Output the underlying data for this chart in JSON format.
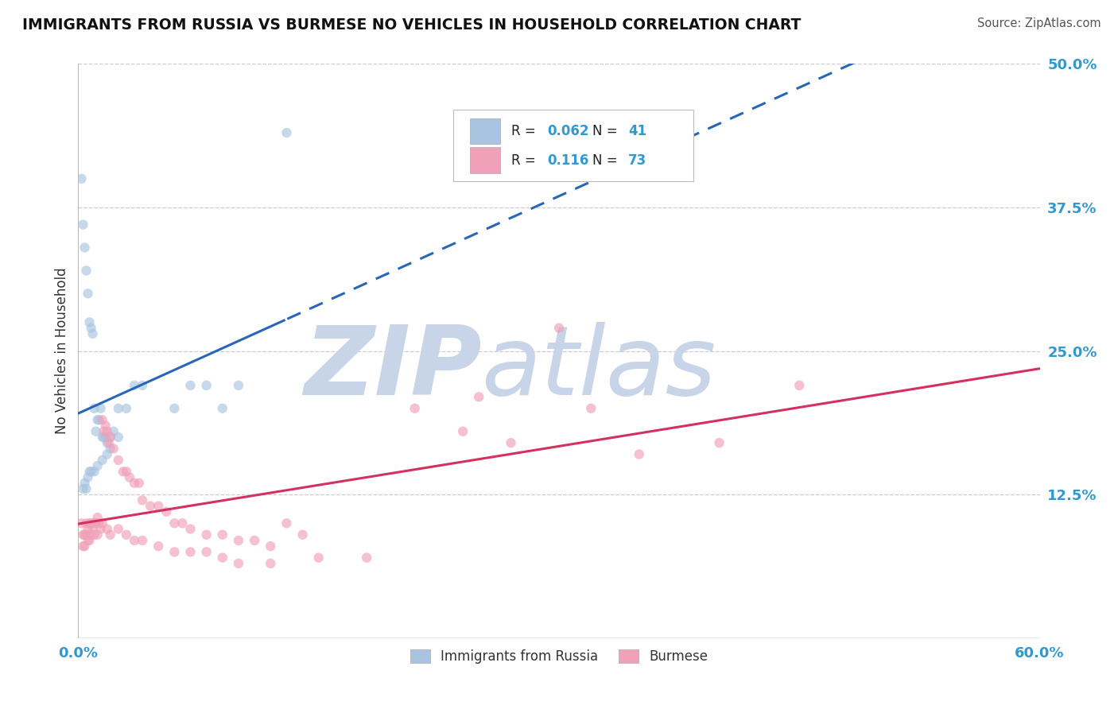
{
  "title": "IMMIGRANTS FROM RUSSIA VS BURMESE NO VEHICLES IN HOUSEHOLD CORRELATION CHART",
  "source": "Source: ZipAtlas.com",
  "ylabel": "No Vehicles in Household",
  "xlim": [
    0.0,
    0.6
  ],
  "ylim": [
    0.0,
    0.5
  ],
  "ytick_right": [
    0.125,
    0.25,
    0.375,
    0.5
  ],
  "ytick_right_labels": [
    "12.5%",
    "25.0%",
    "37.5%",
    "50.0%"
  ],
  "legend_r_russia": "0.062",
  "legend_n_russia": "41",
  "legend_r_burmese": "0.116",
  "legend_n_burmese": "73",
  "legend_labels": [
    "Immigrants from Russia",
    "Burmese"
  ],
  "series_russia": {
    "color_scatter": "#a8c4e0",
    "color_line": "#2966b8",
    "x": [
      0.002,
      0.003,
      0.004,
      0.005,
      0.006,
      0.007,
      0.008,
      0.009,
      0.01,
      0.011,
      0.012,
      0.013,
      0.014,
      0.015,
      0.016,
      0.017,
      0.018,
      0.02,
      0.022,
      0.025,
      0.003,
      0.004,
      0.005,
      0.006,
      0.007,
      0.008,
      0.01,
      0.012,
      0.015,
      0.018,
      0.02,
      0.025,
      0.03,
      0.035,
      0.04,
      0.06,
      0.07,
      0.08,
      0.09,
      0.1,
      0.13
    ],
    "y": [
      0.4,
      0.36,
      0.34,
      0.32,
      0.3,
      0.275,
      0.27,
      0.265,
      0.2,
      0.18,
      0.19,
      0.19,
      0.2,
      0.175,
      0.175,
      0.175,
      0.17,
      0.165,
      0.18,
      0.2,
      0.13,
      0.135,
      0.13,
      0.14,
      0.145,
      0.145,
      0.145,
      0.15,
      0.155,
      0.16,
      0.175,
      0.175,
      0.2,
      0.22,
      0.22,
      0.2,
      0.22,
      0.22,
      0.2,
      0.22,
      0.44
    ]
  },
  "series_burmese": {
    "color_scatter": "#f0a0b8",
    "color_line": "#d43060",
    "x": [
      0.002,
      0.003,
      0.004,
      0.005,
      0.006,
      0.007,
      0.008,
      0.009,
      0.01,
      0.011,
      0.012,
      0.013,
      0.014,
      0.015,
      0.016,
      0.017,
      0.018,
      0.019,
      0.02,
      0.022,
      0.025,
      0.028,
      0.03,
      0.032,
      0.035,
      0.038,
      0.04,
      0.045,
      0.05,
      0.055,
      0.06,
      0.065,
      0.07,
      0.08,
      0.09,
      0.1,
      0.11,
      0.12,
      0.13,
      0.14,
      0.003,
      0.004,
      0.005,
      0.006,
      0.007,
      0.008,
      0.01,
      0.012,
      0.015,
      0.018,
      0.02,
      0.025,
      0.03,
      0.035,
      0.04,
      0.05,
      0.06,
      0.07,
      0.08,
      0.09,
      0.1,
      0.12,
      0.15,
      0.18,
      0.21,
      0.24,
      0.27,
      0.3,
      0.35,
      0.4,
      0.25,
      0.32,
      0.45
    ],
    "y": [
      0.1,
      0.09,
      0.09,
      0.1,
      0.095,
      0.1,
      0.1,
      0.095,
      0.1,
      0.1,
      0.105,
      0.1,
      0.095,
      0.19,
      0.18,
      0.185,
      0.18,
      0.17,
      0.175,
      0.165,
      0.155,
      0.145,
      0.145,
      0.14,
      0.135,
      0.135,
      0.12,
      0.115,
      0.115,
      0.11,
      0.1,
      0.1,
      0.095,
      0.09,
      0.09,
      0.085,
      0.085,
      0.08,
      0.1,
      0.09,
      0.08,
      0.08,
      0.09,
      0.085,
      0.085,
      0.09,
      0.09,
      0.09,
      0.1,
      0.095,
      0.09,
      0.095,
      0.09,
      0.085,
      0.085,
      0.08,
      0.075,
      0.075,
      0.075,
      0.07,
      0.065,
      0.065,
      0.07,
      0.07,
      0.2,
      0.18,
      0.17,
      0.27,
      0.16,
      0.17,
      0.21,
      0.2,
      0.22
    ]
  },
  "background_color": "#ffffff",
  "grid_color": "#cccccc",
  "title_color": "#111111",
  "source_color": "#555555",
  "watermark_zip": "ZIP",
  "watermark_atlas": "atlas",
  "watermark_color_zip": "#c8d4e8",
  "watermark_color_atlas": "#c8d4e8",
  "scatter_size": 80,
  "scatter_alpha": 0.65,
  "line_width": 2.2
}
